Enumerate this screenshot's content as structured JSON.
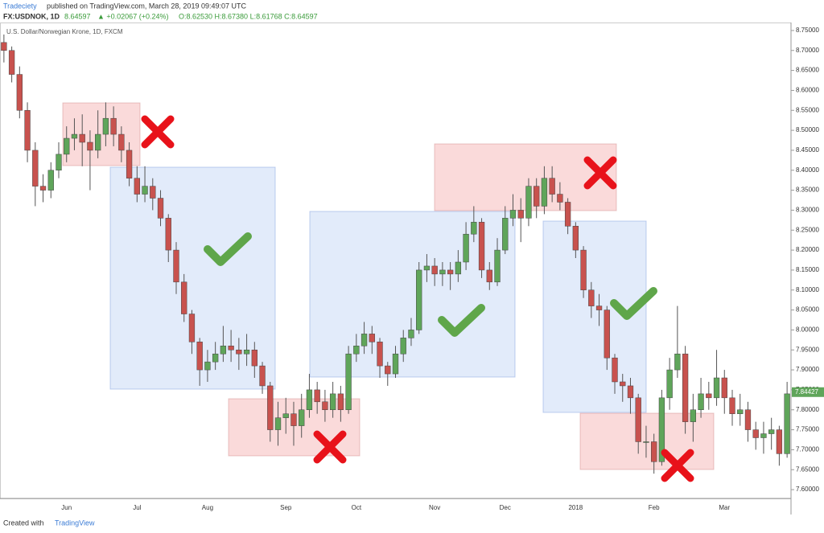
{
  "header": {
    "author": "Tradeciety",
    "published": "published on TradingView.com, March 28, 2019 09:49:07 UTC",
    "symbol": "FX:USDNOK, 1D",
    "last": "8.64597",
    "change": "▲ +0.02067 (+0.24%)",
    "ohlc": "O:8.62530 H:8.67380 L:8.61768 C:8.64597"
  },
  "footer": {
    "created": "Created with",
    "brand": "TradingView"
  },
  "chart_data": {
    "type": "candlestick",
    "title": "U.S. Dollar/Norwegian Krone, 1D, FXCM",
    "categories": [
      null,
      null,
      null,
      null,
      null,
      null,
      null,
      null,
      "Jun",
      null,
      null,
      null,
      null,
      null,
      null,
      null,
      null,
      "Jul",
      null,
      null,
      null,
      null,
      null,
      null,
      null,
      null,
      "Aug",
      null,
      null,
      null,
      null,
      null,
      null,
      null,
      null,
      null,
      "Sep",
      null,
      null,
      null,
      null,
      null,
      null,
      null,
      null,
      "Oct",
      null,
      null,
      null,
      null,
      null,
      null,
      null,
      null,
      null,
      "Nov",
      null,
      null,
      null,
      null,
      null,
      null,
      null,
      null,
      "Dec",
      null,
      null,
      null,
      null,
      null,
      null,
      null,
      null,
      "2018",
      null,
      null,
      null,
      null,
      null,
      null,
      null,
      null,
      null,
      "Feb",
      null,
      null,
      null,
      null,
      null,
      null,
      null,
      null,
      "Mar",
      null,
      null,
      null,
      null,
      null,
      null,
      null,
      null
    ],
    "open": [
      8.72,
      8.7,
      8.64,
      8.55,
      8.45,
      8.36,
      8.35,
      8.4,
      8.44,
      8.48,
      8.49,
      8.47,
      8.45,
      8.49,
      8.53,
      8.49,
      8.45,
      8.38,
      8.34,
      8.36,
      8.33,
      8.28,
      8.2,
      8.12,
      8.04,
      7.97,
      7.9,
      7.92,
      7.94,
      7.96,
      7.95,
      7.94,
      7.95,
      7.91,
      7.86,
      7.75,
      7.78,
      7.79,
      7.76,
      7.8,
      7.85,
      7.82,
      7.8,
      7.84,
      7.8,
      7.94,
      7.96,
      7.99,
      7.97,
      7.91,
      7.89,
      7.94,
      7.98,
      8.0,
      8.15,
      8.16,
      8.14,
      8.15,
      8.14,
      8.17,
      8.24,
      8.27,
      8.15,
      8.12,
      8.2,
      8.28,
      8.3,
      8.28,
      8.36,
      8.31,
      8.38,
      8.34,
      8.32,
      8.26,
      8.2,
      8.1,
      8.06,
      8.05,
      7.93,
      7.87,
      7.86,
      7.83,
      7.72,
      7.72,
      7.67,
      7.83,
      7.9,
      7.94,
      7.77,
      7.8,
      7.84,
      7.83,
      7.88,
      7.83,
      7.79,
      7.8,
      7.75,
      7.73,
      7.74,
      7.75,
      7.69
    ],
    "high": [
      8.74,
      8.71,
      8.66,
      8.57,
      8.47,
      8.39,
      8.42,
      8.47,
      8.51,
      8.53,
      8.54,
      8.5,
      8.55,
      8.57,
      8.56,
      8.51,
      8.47,
      8.41,
      8.41,
      8.38,
      8.35,
      8.29,
      8.22,
      8.14,
      8.05,
      7.98,
      7.95,
      7.97,
      8.01,
      8.0,
      7.98,
      7.99,
      7.97,
      7.92,
      7.87,
      7.82,
      7.83,
      7.82,
      7.84,
      7.89,
      7.87,
      7.85,
      7.87,
      7.86,
      7.96,
      7.99,
      8.02,
      8.01,
      7.98,
      7.92,
      7.96,
      8.0,
      8.03,
      8.17,
      8.19,
      8.18,
      8.17,
      8.17,
      8.2,
      8.27,
      8.31,
      8.28,
      8.17,
      8.23,
      8.31,
      8.34,
      8.33,
      8.38,
      8.38,
      8.41,
      8.41,
      8.37,
      8.33,
      8.27,
      8.21,
      8.12,
      8.09,
      8.06,
      7.94,
      7.89,
      7.88,
      7.84,
      7.76,
      7.74,
      7.85,
      7.93,
      8.06,
      7.96,
      7.84,
      7.88,
      7.87,
      7.95,
      7.9,
      7.85,
      7.84,
      7.82,
      7.77,
      7.77,
      7.78,
      7.76,
      7.87
    ],
    "low": [
      8.67,
      8.62,
      8.53,
      8.42,
      8.31,
      8.32,
      8.33,
      8.38,
      8.42,
      8.45,
      8.41,
      8.35,
      8.43,
      8.46,
      8.46,
      8.42,
      8.36,
      8.32,
      8.32,
      8.3,
      8.26,
      8.17,
      8.09,
      8.02,
      7.94,
      7.86,
      7.87,
      7.9,
      7.92,
      7.92,
      7.9,
      7.91,
      7.88,
      7.84,
      7.72,
      7.71,
      7.74,
      7.71,
      7.73,
      7.78,
      7.79,
      7.77,
      7.78,
      7.77,
      7.79,
      7.92,
      7.94,
      7.94,
      7.88,
      7.86,
      7.88,
      7.92,
      7.96,
      7.99,
      8.12,
      8.11,
      8.11,
      8.1,
      8.12,
      8.15,
      8.22,
      8.13,
      8.1,
      8.11,
      8.19,
      8.26,
      8.22,
      8.26,
      8.28,
      8.29,
      8.32,
      8.3,
      8.24,
      8.18,
      8.08,
      8.03,
      8.01,
      7.9,
      7.84,
      7.82,
      7.79,
      7.69,
      7.68,
      7.64,
      7.66,
      7.8,
      7.88,
      7.74,
      7.72,
      7.78,
      7.8,
      7.81,
      7.79,
      7.76,
      7.76,
      7.72,
      7.7,
      7.69,
      7.7,
      7.66,
      7.68
    ],
    "close": [
      8.7,
      8.64,
      8.55,
      8.45,
      8.36,
      8.35,
      8.4,
      8.44,
      8.48,
      8.49,
      8.47,
      8.45,
      8.49,
      8.53,
      8.49,
      8.45,
      8.38,
      8.34,
      8.36,
      8.33,
      8.28,
      8.2,
      8.12,
      8.04,
      7.97,
      7.9,
      7.92,
      7.94,
      7.96,
      7.95,
      7.94,
      7.95,
      7.91,
      7.86,
      7.75,
      7.78,
      7.79,
      7.76,
      7.8,
      7.85,
      7.82,
      7.8,
      7.84,
      7.8,
      7.94,
      7.96,
      7.99,
      7.97,
      7.91,
      7.89,
      7.94,
      7.98,
      8.0,
      8.15,
      8.16,
      8.14,
      8.15,
      8.14,
      8.17,
      8.24,
      8.27,
      8.15,
      8.12,
      8.2,
      8.28,
      8.3,
      8.28,
      8.36,
      8.31,
      8.38,
      8.34,
      8.32,
      8.26,
      8.2,
      8.1,
      8.06,
      8.05,
      7.93,
      7.87,
      7.86,
      7.83,
      7.72,
      7.72,
      7.67,
      7.83,
      7.9,
      7.94,
      7.77,
      7.8,
      7.84,
      7.83,
      7.88,
      7.83,
      7.79,
      7.8,
      7.75,
      7.73,
      7.74,
      7.75,
      7.69,
      7.84
    ],
    "up_color": "#5fa55a",
    "down_color": "#c8524e",
    "last_price": {
      "value": 7.84427,
      "label": "7.84427"
    },
    "ylim": [
      7.578,
      8.77
    ],
    "yticks": [
      {
        "value": 7.6,
        "label": "7.60000"
      },
      {
        "value": 7.65,
        "label": "7.65000"
      },
      {
        "value": 7.7,
        "label": "7.70000"
      },
      {
        "value": 7.75,
        "label": "7.75000"
      },
      {
        "value": 7.8,
        "label": "7.80000"
      },
      {
        "value": 7.85,
        "label": "7.85000"
      },
      {
        "value": 7.9,
        "label": "7.90000"
      },
      {
        "value": 7.95,
        "label": "7.95000"
      },
      {
        "value": 8.0,
        "label": "8.00000"
      },
      {
        "value": 8.05,
        "label": "8.05000"
      },
      {
        "value": 8.1,
        "label": "8.10000"
      },
      {
        "value": 8.15,
        "label": "8.15000"
      },
      {
        "value": 8.2,
        "label": "8.20000"
      },
      {
        "value": 8.25,
        "label": "8.25000"
      },
      {
        "value": 8.3,
        "label": "8.30000"
      },
      {
        "value": 8.35,
        "label": "8.35000"
      },
      {
        "value": 8.4,
        "label": "8.40000"
      },
      {
        "value": 8.45,
        "label": "8.45000"
      },
      {
        "value": 8.5,
        "label": "8.50000"
      },
      {
        "value": 8.55,
        "label": "8.55000"
      },
      {
        "value": 8.6,
        "label": "8.60000"
      },
      {
        "value": 8.65,
        "label": "8.65000"
      },
      {
        "value": 8.7,
        "label": "8.70000"
      },
      {
        "value": 8.75,
        "label": "8.75000"
      }
    ],
    "grid": false
  }
}
